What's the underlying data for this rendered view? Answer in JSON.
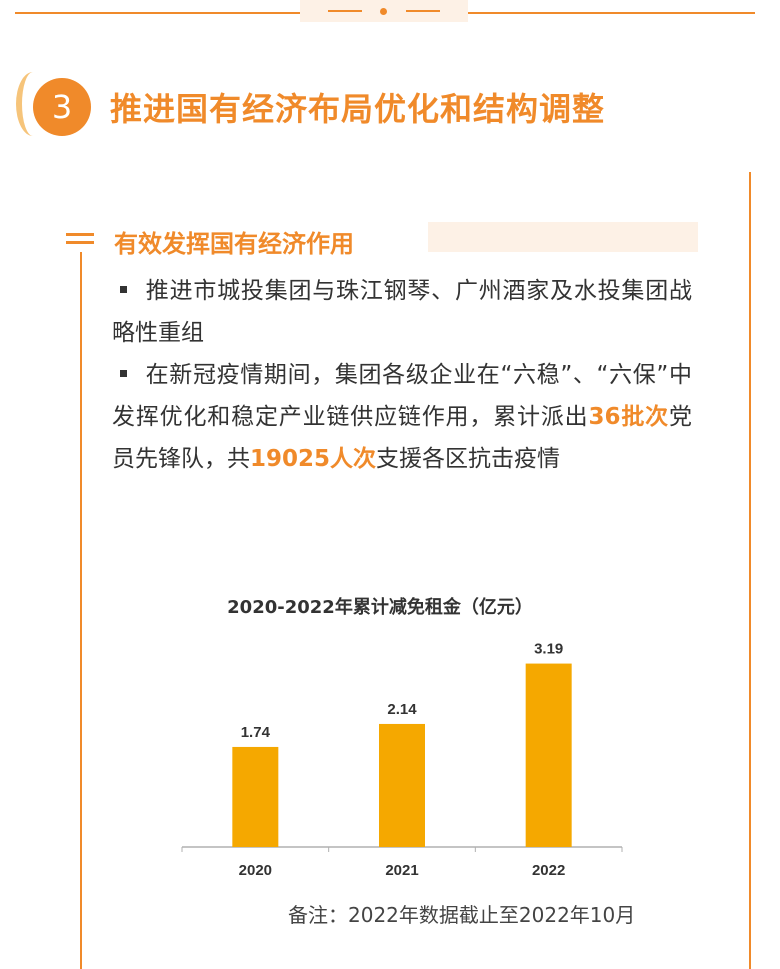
{
  "section": {
    "number": "3",
    "title": "推进国有经济布局优化和结构调整"
  },
  "subsection": {
    "title": "有效发挥国有经济作用"
  },
  "bullets": [
    {
      "parts": [
        {
          "text": "推进市城投集团与珠江钢琴、广州酒家及水投集团战略性重组",
          "highlight": false
        }
      ]
    },
    {
      "parts": [
        {
          "text": "在新冠疫情期间，集团各级企业在“六稳”、“六保”中发挥优化和稳定产业链供应链作用，累计派出",
          "highlight": false
        },
        {
          "text": "36批次",
          "highlight": true
        },
        {
          "text": "党员先锋队，共",
          "highlight": false
        },
        {
          "text": "19025人次",
          "highlight": true
        },
        {
          "text": "支援各区抗击疫情",
          "highlight": false
        }
      ]
    }
  ],
  "chart_data": {
    "type": "bar",
    "title": "2020-2022年累计减免租金（亿元）",
    "categories": [
      "2020",
      "2021",
      "2022"
    ],
    "values": [
      1.74,
      2.14,
      3.19
    ],
    "data_labels": [
      "1.74",
      "2.14",
      "3.19"
    ],
    "ylim": [
      0,
      3.6
    ],
    "grid": false,
    "bar_color": "#f5a800"
  },
  "note": "备注：2022年数据截止至2022年10月",
  "colors": {
    "accent": "#f08a2a",
    "accent_light": "#fdf1e6",
    "bar": "#f5a800",
    "text": "#333333"
  }
}
